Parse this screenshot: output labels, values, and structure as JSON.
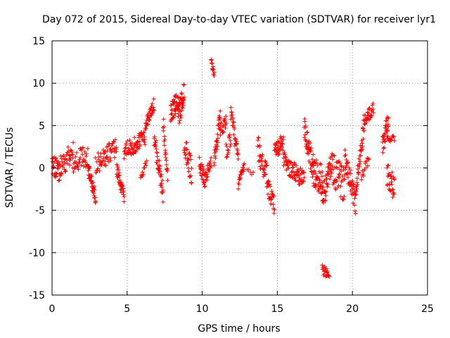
{
  "chart_data": {
    "type": "scatter",
    "title": "Day 072 of 2015, Sidereal Day-to-day VTEC variation (SDTVAR) for receiver lyr1",
    "xlabel": "GPS time / hours",
    "ylabel": "SDTVAR / TECUs",
    "xlim": [
      0,
      25
    ],
    "ylim": [
      -15,
      15
    ],
    "xticks": [
      "0",
      "5",
      "10",
      "15",
      "20",
      "25"
    ],
    "yticks": [
      "-15",
      "-10",
      "-5",
      "0",
      "5",
      "10",
      "15"
    ],
    "grid": true,
    "marker": "+",
    "color": "#ff0000",
    "series": [
      {
        "name": "SDTVAR",
        "segments": [
          {
            "x0": 0.0,
            "x1": 0.5,
            "center": [
              0.5,
              -0.5
            ],
            "amp": 1.2,
            "n": 30
          },
          {
            "x0": 0.5,
            "x1": 1.4,
            "center": [
              0.0,
              2.0
            ],
            "amp": 1.3,
            "n": 40
          },
          {
            "x0": 1.4,
            "x1": 2.4,
            "center": [
              0.5,
              1.5
            ],
            "amp": 1.3,
            "n": 40
          },
          {
            "x0": 2.4,
            "x1": 2.9,
            "center": [
              0.0,
              -3.5
            ],
            "amp": 0.8,
            "n": 40
          },
          {
            "x0": 2.9,
            "x1": 4.3,
            "center": [
              0.5,
              2.5
            ],
            "amp": 1.2,
            "n": 60
          },
          {
            "x0": 4.3,
            "x1": 4.8,
            "center": [
              0.0,
              -3.5
            ],
            "amp": 0.8,
            "n": 35
          },
          {
            "x0": 4.8,
            "x1": 6.2,
            "center": [
              2.0,
              3.5
            ],
            "amp": 1.0,
            "n": 70
          },
          {
            "x0": 5.9,
            "x1": 6.3,
            "center": [
              -1.0,
              0.5
            ],
            "amp": 0.6,
            "n": 12
          },
          {
            "x0": 6.2,
            "x1": 6.8,
            "center": [
              5.0,
              7.5
            ],
            "amp": 0.8,
            "n": 35
          },
          {
            "x0": 6.8,
            "x1": 7.4,
            "center": [
              3.5,
              -3.0
            ],
            "amp": 1.2,
            "n": 40
          },
          {
            "x0": 7.4,
            "x1": 7.7,
            "center": [
              5.5,
              -1.5
            ],
            "amp": 1.0,
            "n": 20
          },
          {
            "x0": 7.9,
            "x1": 8.4,
            "center": [
              6.5,
              8.0
            ],
            "amp": 1.2,
            "n": 40
          },
          {
            "x0": 8.4,
            "x1": 8.8,
            "center": [
              6.0,
              9.0
            ],
            "amp": 1.5,
            "n": 40
          },
          {
            "x0": 8.8,
            "x1": 9.3,
            "center": [
              3.0,
              -0.5
            ],
            "amp": 1.5,
            "n": 30
          },
          {
            "x0": 9.8,
            "x1": 10.2,
            "center": [
              0.5,
              -1.5
            ],
            "amp": 1.0,
            "n": 25
          },
          {
            "x0": 10.2,
            "x1": 10.6,
            "center": [
              -1.0,
              0.5
            ],
            "amp": 0.8,
            "n": 20
          },
          {
            "x0": 10.6,
            "x1": 10.8,
            "center": [
              12.7,
              11.0
            ],
            "amp": 0.4,
            "n": 14
          },
          {
            "x0": 10.8,
            "x1": 11.2,
            "center": [
              1.0,
              6.0
            ],
            "amp": 1.2,
            "n": 30
          },
          {
            "x0": 11.2,
            "x1": 11.6,
            "center": [
              4.5,
              5.5
            ],
            "amp": 0.8,
            "n": 20
          },
          {
            "x0": 11.6,
            "x1": 11.9,
            "center": [
              2.0,
              3.5
            ],
            "amp": 1.0,
            "n": 15
          },
          {
            "x0": 11.9,
            "x1": 12.4,
            "center": [
              6.5,
              1.0
            ],
            "amp": 1.0,
            "n": 30
          },
          {
            "x0": 12.4,
            "x1": 12.8,
            "center": [
              -2.0,
              0.5
            ],
            "amp": 0.8,
            "n": 20
          },
          {
            "x0": 13.0,
            "x1": 13.4,
            "center": [
              -0.5,
              -0.5
            ],
            "amp": 0.3,
            "n": 5
          },
          {
            "x0": 13.7,
            "x1": 14.3,
            "center": [
              2.5,
              -1.0
            ],
            "amp": 1.5,
            "n": 35
          },
          {
            "x0": 14.3,
            "x1": 14.8,
            "center": [
              -2.0,
              -4.5
            ],
            "amp": 1.0,
            "n": 30
          },
          {
            "x0": 14.8,
            "x1": 15.4,
            "center": [
              2.0,
              3.0
            ],
            "amp": 1.0,
            "n": 35
          },
          {
            "x0": 15.4,
            "x1": 16.0,
            "center": [
              1.0,
              -0.5
            ],
            "amp": 1.0,
            "n": 30
          },
          {
            "x0": 16.0,
            "x1": 16.8,
            "center": [
              0.0,
              -1.5
            ],
            "amp": 1.2,
            "n": 40
          },
          {
            "x0": 16.8,
            "x1": 17.4,
            "center": [
              4.5,
              0.0
            ],
            "amp": 1.5,
            "n": 45
          },
          {
            "x0": 17.4,
            "x1": 18.0,
            "center": [
              -0.5,
              -1.5
            ],
            "amp": 1.8,
            "n": 45
          },
          {
            "x0": 18.0,
            "x1": 18.5,
            "center": [
              -3.5,
              -0.5
            ],
            "amp": 1.5,
            "n": 35
          },
          {
            "x0": 18.0,
            "x1": 18.45,
            "center": [
              -12.0,
              -12.5
            ],
            "amp": 0.6,
            "n": 22
          },
          {
            "x0": 18.5,
            "x1": 19.5,
            "center": [
              0.0,
              -2.0
            ],
            "amp": 2.0,
            "n": 55
          },
          {
            "x0": 19.5,
            "x1": 20.2,
            "center": [
              1.5,
              -4.0
            ],
            "amp": 1.5,
            "n": 45
          },
          {
            "x0": 20.2,
            "x1": 20.8,
            "center": [
              -3.0,
              5.5
            ],
            "amp": 1.2,
            "n": 40
          },
          {
            "x0": 20.8,
            "x1": 21.4,
            "center": [
              5.5,
              7.0
            ],
            "amp": 0.8,
            "n": 30
          },
          {
            "x0": 20.6,
            "x1": 21.1,
            "center": [
              -1.0,
              1.0
            ],
            "amp": 0.7,
            "n": 15
          },
          {
            "x0": 22.0,
            "x1": 22.4,
            "center": [
              2.5,
              6.0
            ],
            "amp": 1.2,
            "n": 30
          },
          {
            "x0": 22.3,
            "x1": 22.8,
            "center": [
              -0.5,
              -2.5
            ],
            "amp": 1.5,
            "n": 30
          },
          {
            "x0": 22.3,
            "x1": 22.8,
            "center": [
              3.5,
              3.5
            ],
            "amp": 0.4,
            "n": 15
          }
        ]
      }
    ]
  }
}
